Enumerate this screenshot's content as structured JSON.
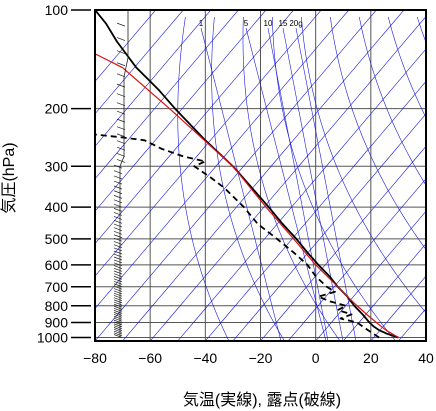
{
  "chart_data": {
    "type": "line",
    "subtype": "skew-t log-p diagram (emagram)",
    "xlabel": "気温(実線), 露点(破線)",
    "ylabel": "気圧(hPa)",
    "xlim": [
      -80,
      40
    ],
    "ylim_hpa": [
      1025,
      100
    ],
    "y_scale": "log",
    "x_ticks": [
      "−80",
      "−60",
      "−40",
      "−20",
      "0",
      "20",
      "40"
    ],
    "x_tick_values": [
      -80,
      -60,
      -40,
      -20,
      0,
      20,
      40
    ],
    "y_ticks": [
      "100",
      "200",
      "300",
      "400",
      "500",
      "600",
      "700",
      "800",
      "900",
      "1000"
    ],
    "y_tick_values": [
      100,
      200,
      300,
      400,
      500,
      600,
      700,
      800,
      900,
      1000
    ],
    "grid": true,
    "background_lines": {
      "color": "#1a1adc",
      "dry_adiabat_theta_K": [
        240,
        260,
        280,
        300,
        320,
        340,
        360,
        380,
        400,
        420,
        440,
        460,
        480,
        500,
        520,
        540,
        560,
        580,
        600,
        620,
        640,
        660,
        680,
        700
      ],
      "mixing_ratio_gkg": [
        1,
        5,
        10,
        15,
        20
      ]
    },
    "mixing_ratio_labels": [
      "1",
      "5",
      "10",
      "15",
      "20g"
    ],
    "series": [
      {
        "role": "temperature",
        "style": "solid",
        "color": "#000000",
        "points": [
          {
            "p": 1000,
            "t": 30
          },
          {
            "p": 975,
            "t": 26
          },
          {
            "p": 950,
            "t": 23
          },
          {
            "p": 925,
            "t": 21
          },
          {
            "p": 900,
            "t": 19.5
          },
          {
            "p": 850,
            "t": 17
          },
          {
            "p": 800,
            "t": 14
          },
          {
            "p": 750,
            "t": 11.5
          },
          {
            "p": 700,
            "t": 8
          },
          {
            "p": 650,
            "t": 5
          },
          {
            "p": 600,
            "t": 1
          },
          {
            "p": 550,
            "t": -3
          },
          {
            "p": 500,
            "t": -7
          },
          {
            "p": 450,
            "t": -12
          },
          {
            "p": 400,
            "t": -17
          },
          {
            "p": 350,
            "t": -23
          },
          {
            "p": 300,
            "t": -30
          },
          {
            "p": 250,
            "t": -40
          },
          {
            "p": 200,
            "t": -51
          },
          {
            "p": 175,
            "t": -57
          },
          {
            "p": 150,
            "t": -65
          },
          {
            "p": 125,
            "t": -72
          },
          {
            "p": 110,
            "t": -76
          },
          {
            "p": 100,
            "t": -80
          }
        ]
      },
      {
        "role": "dewpoint",
        "style": "dashed",
        "color": "#000000",
        "points": [
          {
            "p": 1000,
            "t": 23
          },
          {
            "p": 975,
            "t": 21
          },
          {
            "p": 950,
            "t": 19
          },
          {
            "p": 925,
            "t": 17
          },
          {
            "p": 900,
            "t": 15
          },
          {
            "p": 875,
            "t": 9
          },
          {
            "p": 850,
            "t": 13
          },
          {
            "p": 825,
            "t": 8
          },
          {
            "p": 800,
            "t": 11
          },
          {
            "p": 775,
            "t": 5
          },
          {
            "p": 750,
            "t": 1
          },
          {
            "p": 725,
            "t": 7
          },
          {
            "p": 700,
            "t": 4
          },
          {
            "p": 650,
            "t": 0
          },
          {
            "p": 600,
            "t": -3
          },
          {
            "p": 550,
            "t": -8
          },
          {
            "p": 500,
            "t": -14
          },
          {
            "p": 450,
            "t": -21
          },
          {
            "p": 400,
            "t": -26
          },
          {
            "p": 350,
            "t": -33
          },
          {
            "p": 325,
            "t": -38
          },
          {
            "p": 300,
            "t": -44
          },
          {
            "p": 290,
            "t": -40
          },
          {
            "p": 280,
            "t": -48
          },
          {
            "p": 265,
            "t": -56
          },
          {
            "p": 250,
            "t": -62
          },
          {
            "p": 245,
            "t": -70
          },
          {
            "p": 240,
            "t": -80
          }
        ]
      },
      {
        "role": "parcel path",
        "style": "solid",
        "color": "#e01010",
        "points": [
          {
            "p": 1000,
            "t": 30
          },
          {
            "p": 950,
            "t": 25.5
          },
          {
            "p": 900,
            "t": 22
          },
          {
            "p": 850,
            "t": 18.5
          },
          {
            "p": 800,
            "t": 15
          },
          {
            "p": 750,
            "t": 11.5
          },
          {
            "p": 700,
            "t": 8
          },
          {
            "p": 600,
            "t": 0
          },
          {
            "p": 500,
            "t": -8
          },
          {
            "p": 400,
            "t": -18
          },
          {
            "p": 300,
            "t": -30
          },
          {
            "p": 200,
            "t": -53
          },
          {
            "p": 150,
            "t": -70
          },
          {
            "p": 136,
            "t": -80
          }
        ]
      }
    ]
  }
}
